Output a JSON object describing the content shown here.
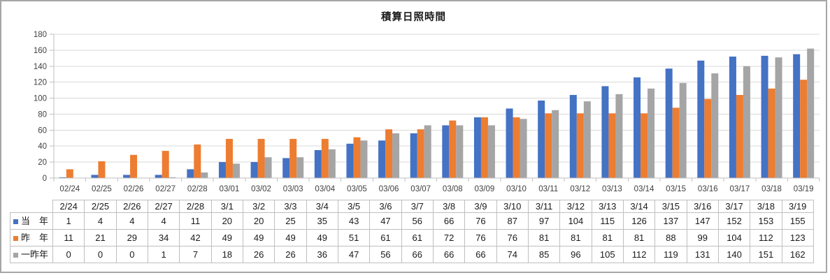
{
  "chart_data": {
    "type": "bar",
    "title": "積算日照時間",
    "categories": [
      "02/24",
      "02/25",
      "02/26",
      "02/27",
      "02/28",
      "03/01",
      "03/02",
      "03/03",
      "03/04",
      "03/05",
      "03/06",
      "03/07",
      "03/08",
      "03/09",
      "03/10",
      "03/11",
      "03/12",
      "03/13",
      "03/14",
      "03/15",
      "03/16",
      "03/17",
      "03/18",
      "03/19"
    ],
    "series": [
      {
        "name": "当年",
        "color": "#4472C4",
        "values": [
          1,
          4,
          4,
          4,
          11,
          20,
          20,
          25,
          35,
          43,
          47,
          56,
          66,
          76,
          87,
          97,
          104,
          115,
          126,
          137,
          147,
          152,
          153,
          155
        ]
      },
      {
        "name": "昨年",
        "color": "#ED7D31",
        "values": [
          11,
          21,
          29,
          34,
          42,
          49,
          49,
          49,
          49,
          51,
          61,
          61,
          72,
          76,
          76,
          81,
          81,
          81,
          81,
          88,
          99,
          104,
          112,
          123
        ]
      },
      {
        "name": "一昨年",
        "color": "#A5A5A5",
        "values": [
          0,
          0,
          0,
          1,
          7,
          18,
          26,
          26,
          36,
          47,
          56,
          66,
          66,
          66,
          74,
          85,
          96,
          105,
          112,
          119,
          131,
          140,
          151,
          162
        ]
      }
    ],
    "xlabel": "",
    "ylabel": "",
    "ylim": [
      0,
      180
    ],
    "yticks": [
      0,
      20,
      40,
      60,
      80,
      100,
      120,
      140,
      160,
      180
    ],
    "grid": true,
    "legend_position": "data-table-row-headers"
  },
  "table": {
    "column_headers": [
      "2/24",
      "2/25",
      "2/26",
      "2/27",
      "2/28",
      "3/1",
      "3/2",
      "3/3",
      "3/4",
      "3/5",
      "3/6",
      "3/7",
      "3/8",
      "3/9",
      "3/10",
      "3/11",
      "3/12",
      "3/13",
      "3/14",
      "3/15",
      "3/16",
      "3/17",
      "3/18",
      "3/19"
    ],
    "rows": [
      {
        "label": "当　年",
        "swatch_color": "#4472C4",
        "values": [
          1,
          4,
          4,
          4,
          11,
          20,
          20,
          25,
          35,
          43,
          47,
          56,
          66,
          76,
          87,
          97,
          104,
          115,
          126,
          137,
          147,
          152,
          153,
          155
        ]
      },
      {
        "label": "昨　年",
        "swatch_color": "#ED7D31",
        "values": [
          11,
          21,
          29,
          34,
          42,
          49,
          49,
          49,
          49,
          51,
          61,
          61,
          72,
          76,
          76,
          81,
          81,
          81,
          81,
          88,
          99,
          104,
          112,
          123
        ]
      },
      {
        "label": "一昨年",
        "swatch_color": "#A5A5A5",
        "values": [
          0,
          0,
          0,
          1,
          7,
          18,
          26,
          26,
          36,
          47,
          56,
          66,
          66,
          66,
          74,
          85,
          96,
          105,
          112,
          119,
          131,
          140,
          151,
          162
        ]
      }
    ]
  },
  "colors": {
    "gridline": "#D9D9D9",
    "axis": "#BFBFBF",
    "table_border": "#BFBFBF",
    "frame_border": "#A6A6A6",
    "axis_text": "#404040",
    "text": "#1A1A1A"
  }
}
